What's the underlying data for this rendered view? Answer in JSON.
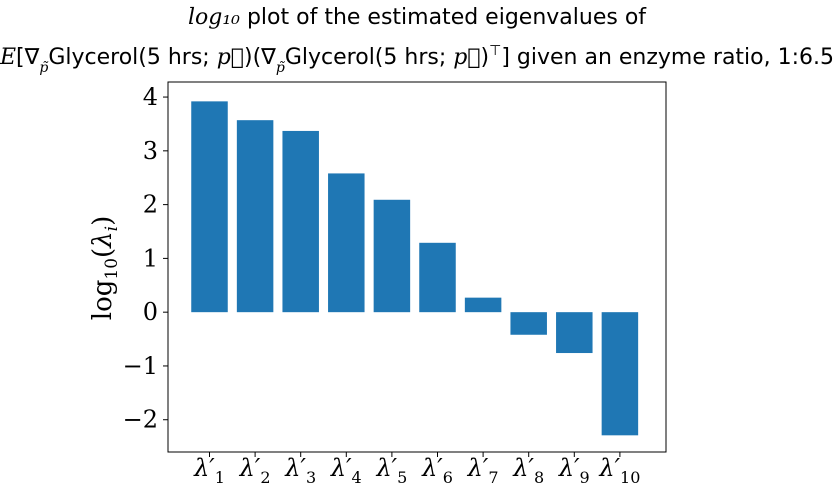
{
  "chart_data": {
    "type": "bar",
    "title_line1": "log10 plot of the estimated eigenvalues of",
    "title_line2": "E[∇p̃Glycerol(5 hrs; p⃗)(∇p̃Glycerol(5 hrs; p⃗)⊤] given an enzyme ratio, 1:6.5",
    "xlabel": "",
    "ylabel": "log10(λi)",
    "categories": [
      "λ′1",
      "λ′2",
      "λ′3",
      "λ′4",
      "λ′5",
      "λ′6",
      "λ′7",
      "λ′8",
      "λ′9",
      "λ′10"
    ],
    "values": [
      3.92,
      3.57,
      3.37,
      2.58,
      2.09,
      1.29,
      0.27,
      -0.42,
      -0.76,
      -2.29
    ],
    "ylim": [
      -2.6,
      4.28
    ],
    "yticks": [
      4,
      3,
      2,
      1,
      0,
      -1,
      -2
    ],
    "ytick_labels": [
      "4",
      "3",
      "2",
      "1",
      "0",
      "−1",
      "−2"
    ],
    "bar_color": "#1f77b4",
    "grid": false,
    "legend": "none"
  }
}
